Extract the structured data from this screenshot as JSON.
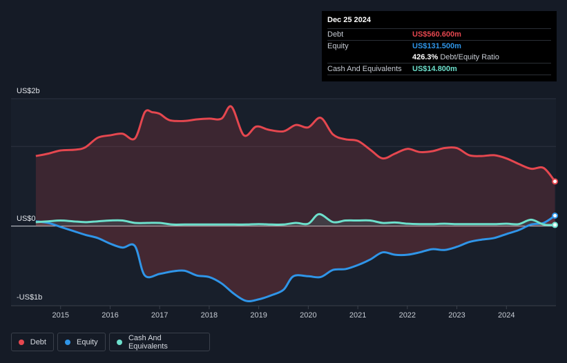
{
  "tooltip": {
    "date": "Dec 25 2024",
    "debt_label": "Debt",
    "debt_value": "US$560.600m",
    "equity_label": "Equity",
    "equity_value": "US$131.500m",
    "ratio_value": "426.3%",
    "ratio_label": "Debt/Equity Ratio",
    "cash_label": "Cash And Equivalents",
    "cash_value": "US$14.800m"
  },
  "legend": {
    "debt": "Debt",
    "equity": "Equity",
    "cash": "Cash And Equivalents"
  },
  "colors": {
    "debt": "#e5474f",
    "equity": "#2f95e8",
    "cash": "#6de0cc",
    "background": "#151b26"
  },
  "chart_data": {
    "type": "area",
    "ylim": [
      -1000,
      1600
    ],
    "xlim": [
      2014,
      2025.0
    ],
    "y_tick_labels": [
      {
        "value": 1600,
        "label": "US$2b"
      },
      {
        "value": 0,
        "label": "US$0"
      },
      {
        "value": -1000,
        "label": "-US$1b"
      }
    ],
    "x_ticks": [
      "2015",
      "2016",
      "2017",
      "2018",
      "2019",
      "2020",
      "2021",
      "2022",
      "2023",
      "2024"
    ],
    "series": [
      {
        "name": "Debt",
        "points": [
          [
            2014.5,
            880
          ],
          [
            2014.75,
            910
          ],
          [
            2015.0,
            950
          ],
          [
            2015.3,
            960
          ],
          [
            2015.5,
            990
          ],
          [
            2015.75,
            1110
          ],
          [
            2016.0,
            1140
          ],
          [
            2016.25,
            1160
          ],
          [
            2016.5,
            1100
          ],
          [
            2016.7,
            1430
          ],
          [
            2016.85,
            1430
          ],
          [
            2017.0,
            1410
          ],
          [
            2017.2,
            1330
          ],
          [
            2017.5,
            1320
          ],
          [
            2017.75,
            1340
          ],
          [
            2018.0,
            1350
          ],
          [
            2018.25,
            1350
          ],
          [
            2018.45,
            1500
          ],
          [
            2018.7,
            1140
          ],
          [
            2018.95,
            1250
          ],
          [
            2019.2,
            1210
          ],
          [
            2019.5,
            1190
          ],
          [
            2019.75,
            1270
          ],
          [
            2020.0,
            1240
          ],
          [
            2020.25,
            1360
          ],
          [
            2020.5,
            1150
          ],
          [
            2020.75,
            1090
          ],
          [
            2021.0,
            1070
          ],
          [
            2021.25,
            960
          ],
          [
            2021.5,
            850
          ],
          [
            2021.75,
            910
          ],
          [
            2022.0,
            970
          ],
          [
            2022.25,
            930
          ],
          [
            2022.5,
            940
          ],
          [
            2022.75,
            980
          ],
          [
            2023.0,
            980
          ],
          [
            2023.25,
            890
          ],
          [
            2023.5,
            880
          ],
          [
            2023.75,
            890
          ],
          [
            2024.0,
            850
          ],
          [
            2024.25,
            780
          ],
          [
            2024.5,
            720
          ],
          [
            2024.75,
            730
          ],
          [
            2024.98,
            561
          ]
        ]
      },
      {
        "name": "Equity",
        "points": [
          [
            2014.5,
            60
          ],
          [
            2014.75,
            40
          ],
          [
            2015.0,
            -10
          ],
          [
            2015.25,
            -60
          ],
          [
            2015.5,
            -110
          ],
          [
            2015.75,
            -150
          ],
          [
            2016.0,
            -220
          ],
          [
            2016.25,
            -270
          ],
          [
            2016.5,
            -250
          ],
          [
            2016.7,
            -620
          ],
          [
            2017.0,
            -600
          ],
          [
            2017.25,
            -570
          ],
          [
            2017.5,
            -560
          ],
          [
            2017.75,
            -620
          ],
          [
            2018.0,
            -640
          ],
          [
            2018.25,
            -720
          ],
          [
            2018.5,
            -850
          ],
          [
            2018.75,
            -940
          ],
          [
            2019.0,
            -920
          ],
          [
            2019.25,
            -870
          ],
          [
            2019.5,
            -800
          ],
          [
            2019.7,
            -630
          ],
          [
            2020.0,
            -630
          ],
          [
            2020.25,
            -640
          ],
          [
            2020.5,
            -550
          ],
          [
            2020.75,
            -540
          ],
          [
            2021.0,
            -490
          ],
          [
            2021.25,
            -420
          ],
          [
            2021.5,
            -330
          ],
          [
            2021.75,
            -360
          ],
          [
            2022.0,
            -360
          ],
          [
            2022.25,
            -330
          ],
          [
            2022.5,
            -290
          ],
          [
            2022.75,
            -300
          ],
          [
            2023.0,
            -260
          ],
          [
            2023.25,
            -200
          ],
          [
            2023.5,
            -170
          ],
          [
            2023.75,
            -150
          ],
          [
            2024.0,
            -100
          ],
          [
            2024.25,
            -50
          ],
          [
            2024.5,
            20
          ],
          [
            2024.75,
            40
          ],
          [
            2024.98,
            131
          ]
        ]
      },
      {
        "name": "Cash And Equivalents",
        "points": [
          [
            2014.5,
            50
          ],
          [
            2014.75,
            60
          ],
          [
            2015.0,
            70
          ],
          [
            2015.25,
            60
          ],
          [
            2015.5,
            50
          ],
          [
            2015.75,
            60
          ],
          [
            2016.0,
            70
          ],
          [
            2016.25,
            70
          ],
          [
            2016.5,
            40
          ],
          [
            2016.75,
            40
          ],
          [
            2017.0,
            40
          ],
          [
            2017.25,
            20
          ],
          [
            2017.5,
            20
          ],
          [
            2017.75,
            20
          ],
          [
            2018.0,
            20
          ],
          [
            2018.25,
            20
          ],
          [
            2018.5,
            20
          ],
          [
            2018.75,
            20
          ],
          [
            2019.0,
            25
          ],
          [
            2019.25,
            20
          ],
          [
            2019.5,
            20
          ],
          [
            2019.75,
            40
          ],
          [
            2020.0,
            30
          ],
          [
            2020.22,
            150
          ],
          [
            2020.5,
            50
          ],
          [
            2020.75,
            70
          ],
          [
            2021.0,
            70
          ],
          [
            2021.25,
            70
          ],
          [
            2021.5,
            40
          ],
          [
            2021.75,
            45
          ],
          [
            2022.0,
            30
          ],
          [
            2022.25,
            25
          ],
          [
            2022.5,
            25
          ],
          [
            2022.75,
            30
          ],
          [
            2023.0,
            25
          ],
          [
            2023.25,
            25
          ],
          [
            2023.5,
            25
          ],
          [
            2023.75,
            25
          ],
          [
            2024.0,
            30
          ],
          [
            2024.25,
            25
          ],
          [
            2024.5,
            80
          ],
          [
            2024.75,
            20
          ],
          [
            2024.98,
            15
          ]
        ]
      }
    ]
  }
}
